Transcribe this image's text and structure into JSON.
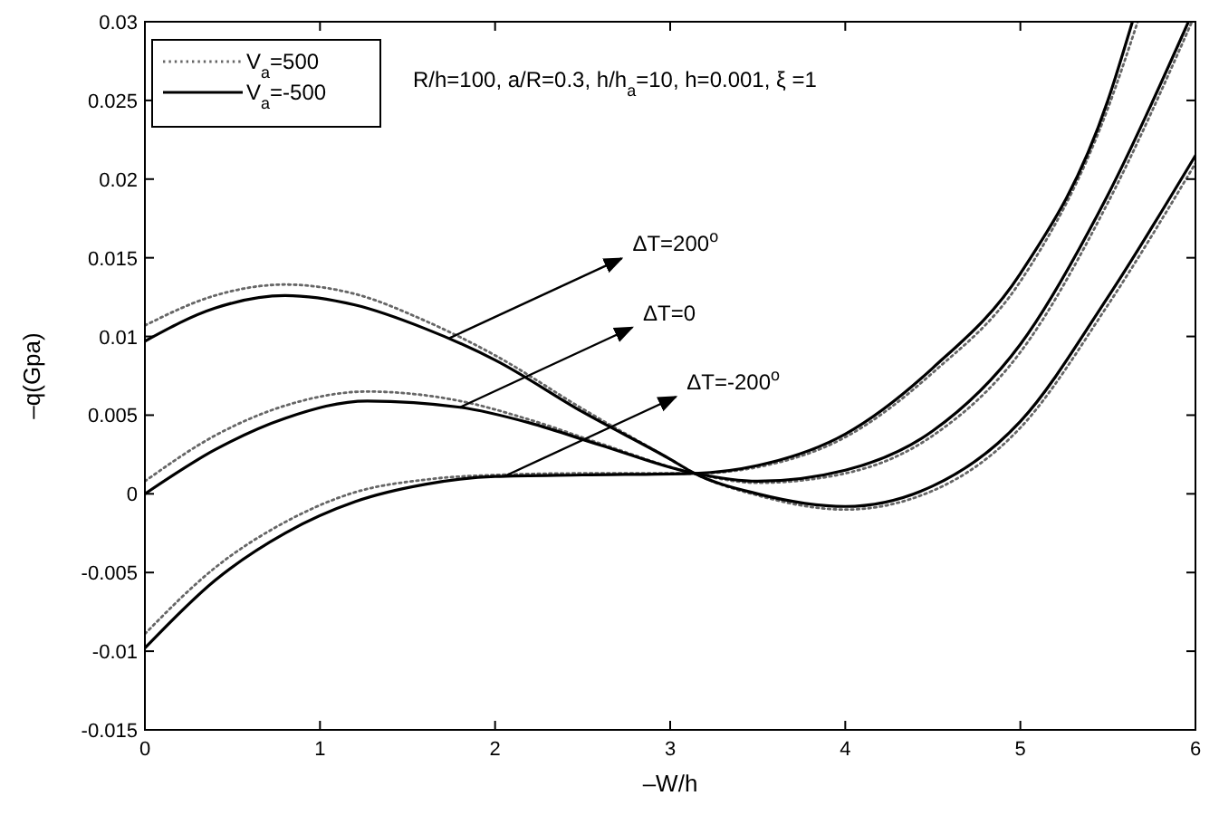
{
  "chart_data": {
    "type": "line",
    "xlabel": "–W/h",
    "ylabel": "–q(Gpa)",
    "xlim": [
      0,
      6
    ],
    "xticks": [
      0,
      1,
      2,
      3,
      4,
      5,
      6
    ],
    "ylim": [
      -0.015,
      0.03
    ],
    "yticks": [
      -0.015,
      -0.01,
      -0.005,
      0,
      0.005,
      0.01,
      0.015,
      0.02,
      0.025,
      0.03
    ],
    "grid": false,
    "legend": "top left",
    "series": [
      {
        "name": "V$_{a}$=500",
        "color": "#666666",
        "line_style": "dotted",
        "x": [
          0,
          0.4,
          0.8,
          1.2,
          1.6,
          2,
          2.5,
          3,
          3.14,
          3.5,
          4,
          4.5,
          5,
          5.5,
          6
        ],
        "values": [
          0.0107,
          0.0126,
          0.0133,
          0.0127,
          0.011,
          0.0088,
          0.0054,
          0.0022,
          0.0013,
          -0.0001,
          -0.001,
          0.0002,
          0.0042,
          0.012,
          0.021
        ]
      },
      {
        "color": "#666666",
        "line_style": "dotted",
        "x": [
          0,
          0.4,
          0.8,
          1.27,
          1.8,
          2.2,
          2.6,
          3.14,
          3.5,
          4,
          4.5,
          5,
          5.5,
          5.98
        ],
        "values": [
          0.0008,
          0.0037,
          0.0056,
          0.0065,
          0.0059,
          0.0047,
          0.0032,
          0.0013,
          0.0007,
          0.0013,
          0.0037,
          0.009,
          0.0185,
          0.03
        ]
      },
      {
        "color": "#666666",
        "line_style": "dotted",
        "x": [
          0,
          0.4,
          0.8,
          1.2,
          1.6,
          2,
          2.5,
          3.14,
          3.5,
          4,
          4.5,
          5,
          5.5,
          5.67
        ],
        "values": [
          -0.0089,
          -0.0047,
          -0.0018,
          0.0001,
          0.0009,
          0.0012,
          0.0013,
          0.0013,
          0.0017,
          0.0036,
          0.0077,
          0.0135,
          0.0245,
          0.03
        ]
      },
      {
        "name": "V$_{a}$=-500",
        "color": "#000000",
        "line_style": "solid",
        "x": [
          0,
          0.4,
          0.8,
          1.2,
          1.6,
          2,
          2.5,
          3,
          3.14,
          3.5,
          4,
          4.5,
          5,
          5.5,
          6
        ],
        "values": [
          0.0097,
          0.0118,
          0.0126,
          0.012,
          0.0105,
          0.0085,
          0.0052,
          0.0022,
          0.0013,
          0,
          -0.0008,
          0.0005,
          0.0046,
          0.0125,
          0.0215
        ]
      },
      {
        "color": "#000000",
        "line_style": "solid",
        "x": [
          0,
          0.4,
          0.8,
          1.27,
          1.8,
          2.2,
          2.6,
          3.14,
          3.5,
          4,
          4.5,
          5,
          5.5,
          5.96
        ],
        "values": [
          0,
          0.0028,
          0.0048,
          0.0059,
          0.0055,
          0.0045,
          0.0031,
          0.0013,
          0.0008,
          0.0015,
          0.004,
          0.0095,
          0.019,
          0.03
        ]
      },
      {
        "color": "#000000",
        "line_style": "solid",
        "x": [
          0,
          0.4,
          0.8,
          1.2,
          1.6,
          2,
          2.5,
          3.14,
          3.5,
          4,
          4.5,
          5,
          5.5,
          5.64
        ],
        "values": [
          -0.0098,
          -0.0055,
          -0.0025,
          -0.0005,
          0.0006,
          0.0011,
          0.0012,
          0.0013,
          0.0018,
          0.0038,
          0.008,
          0.014,
          0.025,
          0.03
        ]
      }
    ],
    "annotations": [
      "R/h=100, a/R=0.3, h/h$_{a}$=10, h=0.001, ξ =1",
      {
        "text": "ΔT=200$^{o}$",
        "x": 1.74,
        "y": 0.0099
      },
      {
        "text": "ΔT=0",
        "x": 1.8,
        "y": 0.0055
      },
      {
        "text": "ΔT=-200$^{o}$",
        "x": 2.05,
        "y": 0.0011
      }
    ]
  }
}
